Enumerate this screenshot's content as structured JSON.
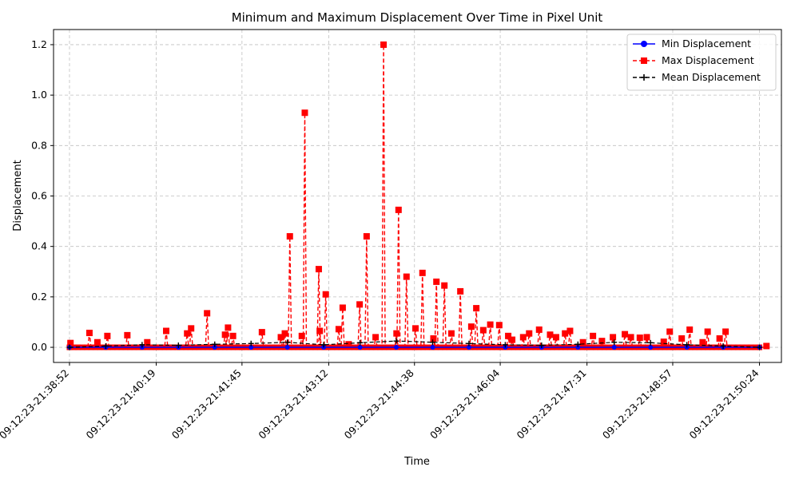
{
  "chart_data": {
    "type": "line",
    "title": "Minimum and Maximum Displacement Over Time in Pixel Unit",
    "xlabel": "Time",
    "ylabel": "Displacement",
    "x_tick_labels": [
      "09:12:23-21:38:52",
      "09:12:23-21:40:19",
      "09:12:23-21:41:45",
      "09:12:23-21:43:12",
      "09:12:23-21:44:38",
      "09:12:23-21:46:04",
      "09:12:23-21:47:31",
      "09:12:23-21:48:57",
      "09:12:23-21:50:24"
    ],
    "y_ticks": [
      0.0,
      0.2,
      0.4,
      0.6,
      0.8,
      1.0,
      1.2
    ],
    "y_tick_labels": [
      "0.0",
      "0.2",
      "0.4",
      "0.6",
      "0.8",
      "1.0",
      "1.2"
    ],
    "ylim": [
      -0.06,
      1.26
    ],
    "grid": true,
    "legend_position": "top-right",
    "x_start": "09:12:23-21:38:52",
    "x_end": "09:12:23-21:50:24",
    "x_range": [
      "09:12:23-21:38:36",
      "09:12:23-21:50:46"
    ],
    "series": [
      {
        "name": "Min Displacement",
        "color": "#0000ff",
        "style": "solid",
        "marker": "circle",
        "values": [
          0.0,
          0.0,
          0.0,
          0.0,
          0.0,
          0.0,
          0.0,
          0.0,
          0.0,
          0.0,
          0.0,
          0.0,
          0.0,
          0.0,
          0.0,
          0.0,
          0.0,
          0.0,
          0.0,
          0.0
        ]
      },
      {
        "name": "Max Displacement",
        "color": "#ff0000",
        "style": "dashed",
        "marker": "square",
        "spikes": [
          {
            "x": "09:12:23-21:38:53",
            "y": 0.017
          },
          {
            "x": "09:12:23-21:39:12",
            "y": 0.057
          },
          {
            "x": "09:12:23-21:39:20",
            "y": 0.02
          },
          {
            "x": "09:12:23-21:39:30",
            "y": 0.045
          },
          {
            "x": "09:12:23-21:39:50",
            "y": 0.048
          },
          {
            "x": "09:12:23-21:40:10",
            "y": 0.02
          },
          {
            "x": "09:12:23-21:40:29",
            "y": 0.065
          },
          {
            "x": "09:12:23-21:40:50",
            "y": 0.055
          },
          {
            "x": "09:12:23-21:40:54",
            "y": 0.075
          },
          {
            "x": "09:12:23-21:41:10",
            "y": 0.135
          },
          {
            "x": "09:12:23-21:41:28",
            "y": 0.05
          },
          {
            "x": "09:12:23-21:41:31",
            "y": 0.078
          },
          {
            "x": "09:12:23-21:41:36",
            "y": 0.045
          },
          {
            "x": "09:12:23-21:42:05",
            "y": 0.06
          },
          {
            "x": "09:12:23-21:42:24",
            "y": 0.04
          },
          {
            "x": "09:12:23-21:42:28",
            "y": 0.055
          },
          {
            "x": "09:12:23-21:42:33",
            "y": 0.44
          },
          {
            "x": "09:12:23-21:42:45",
            "y": 0.045
          },
          {
            "x": "09:12:23-21:42:48",
            "y": 0.93
          },
          {
            "x": "09:12:23-21:43:02",
            "y": 0.31
          },
          {
            "x": "09:12:23-21:43:03",
            "y": 0.065
          },
          {
            "x": "09:12:23-21:43:09",
            "y": 0.21
          },
          {
            "x": "09:12:23-21:43:22",
            "y": 0.072
          },
          {
            "x": "09:12:23-21:43:26",
            "y": 0.157
          },
          {
            "x": "09:12:23-21:43:32",
            "y": 0.012
          },
          {
            "x": "09:12:23-21:43:43",
            "y": 0.17
          },
          {
            "x": "09:12:23-21:43:50",
            "y": 0.44
          },
          {
            "x": "09:12:23-21:43:59",
            "y": 0.04
          },
          {
            "x": "09:12:23-21:44:07",
            "y": 1.2
          },
          {
            "x": "09:12:23-21:44:20",
            "y": 0.055
          },
          {
            "x": "09:12:23-21:44:22",
            "y": 0.545
          },
          {
            "x": "09:12:23-21:44:30",
            "y": 0.28
          },
          {
            "x": "09:12:23-21:44:39",
            "y": 0.075
          },
          {
            "x": "09:12:23-21:44:46",
            "y": 0.295
          },
          {
            "x": "09:12:23-21:44:57",
            "y": 0.035
          },
          {
            "x": "09:12:23-21:45:00",
            "y": 0.26
          },
          {
            "x": "09:12:23-21:45:08",
            "y": 0.245
          },
          {
            "x": "09:12:23-21:45:15",
            "y": 0.055
          },
          {
            "x": "09:12:23-21:45:24",
            "y": 0.222
          },
          {
            "x": "09:12:23-21:45:35",
            "y": 0.082
          },
          {
            "x": "09:12:23-21:45:40",
            "y": 0.155
          },
          {
            "x": "09:12:23-21:45:47",
            "y": 0.068
          },
          {
            "x": "09:12:23-21:45:54",
            "y": 0.09
          },
          {
            "x": "09:12:23-21:46:03",
            "y": 0.088
          },
          {
            "x": "09:12:23-21:46:12",
            "y": 0.045
          },
          {
            "x": "09:12:23-21:46:16",
            "y": 0.03
          },
          {
            "x": "09:12:23-21:46:27",
            "y": 0.04
          },
          {
            "x": "09:12:23-21:46:33",
            "y": 0.055
          },
          {
            "x": "09:12:23-21:46:43",
            "y": 0.07
          },
          {
            "x": "09:12:23-21:46:54",
            "y": 0.05
          },
          {
            "x": "09:12:23-21:47:00",
            "y": 0.04
          },
          {
            "x": "09:12:23-21:47:09",
            "y": 0.055
          },
          {
            "x": "09:12:23-21:47:14",
            "y": 0.065
          },
          {
            "x": "09:12:23-21:47:27",
            "y": 0.02
          },
          {
            "x": "09:12:23-21:47:37",
            "y": 0.045
          },
          {
            "x": "09:12:23-21:47:46",
            "y": 0.025
          },
          {
            "x": "09:12:23-21:47:57",
            "y": 0.04
          },
          {
            "x": "09:12:23-21:48:09",
            "y": 0.052
          },
          {
            "x": "09:12:23-21:48:15",
            "y": 0.04
          },
          {
            "x": "09:12:23-21:48:24",
            "y": 0.038
          },
          {
            "x": "09:12:23-21:48:31",
            "y": 0.04
          },
          {
            "x": "09:12:23-21:48:48",
            "y": 0.022
          },
          {
            "x": "09:12:23-21:48:54",
            "y": 0.062
          },
          {
            "x": "09:12:23-21:49:06",
            "y": 0.035
          },
          {
            "x": "09:12:23-21:49:14",
            "y": 0.07
          },
          {
            "x": "09:12:23-21:49:27",
            "y": 0.02
          },
          {
            "x": "09:12:23-21:49:32",
            "y": 0.062
          },
          {
            "x": "09:12:23-21:49:44",
            "y": 0.035
          },
          {
            "x": "09:12:23-21:49:50",
            "y": 0.062
          },
          {
            "x": "09:12:23-21:50:31",
            "y": 0.005
          }
        ]
      },
      {
        "name": "Mean Displacement",
        "color": "#000000",
        "style": "dashed",
        "marker": "plus",
        "values": [
          0.0,
          0.005,
          0.01,
          0.008,
          0.012,
          0.015,
          0.02,
          0.01,
          0.018,
          0.025,
          0.02,
          0.015,
          0.01,
          0.008,
          0.012,
          0.02,
          0.018,
          0.01,
          0.005,
          0.0
        ]
      }
    ]
  }
}
